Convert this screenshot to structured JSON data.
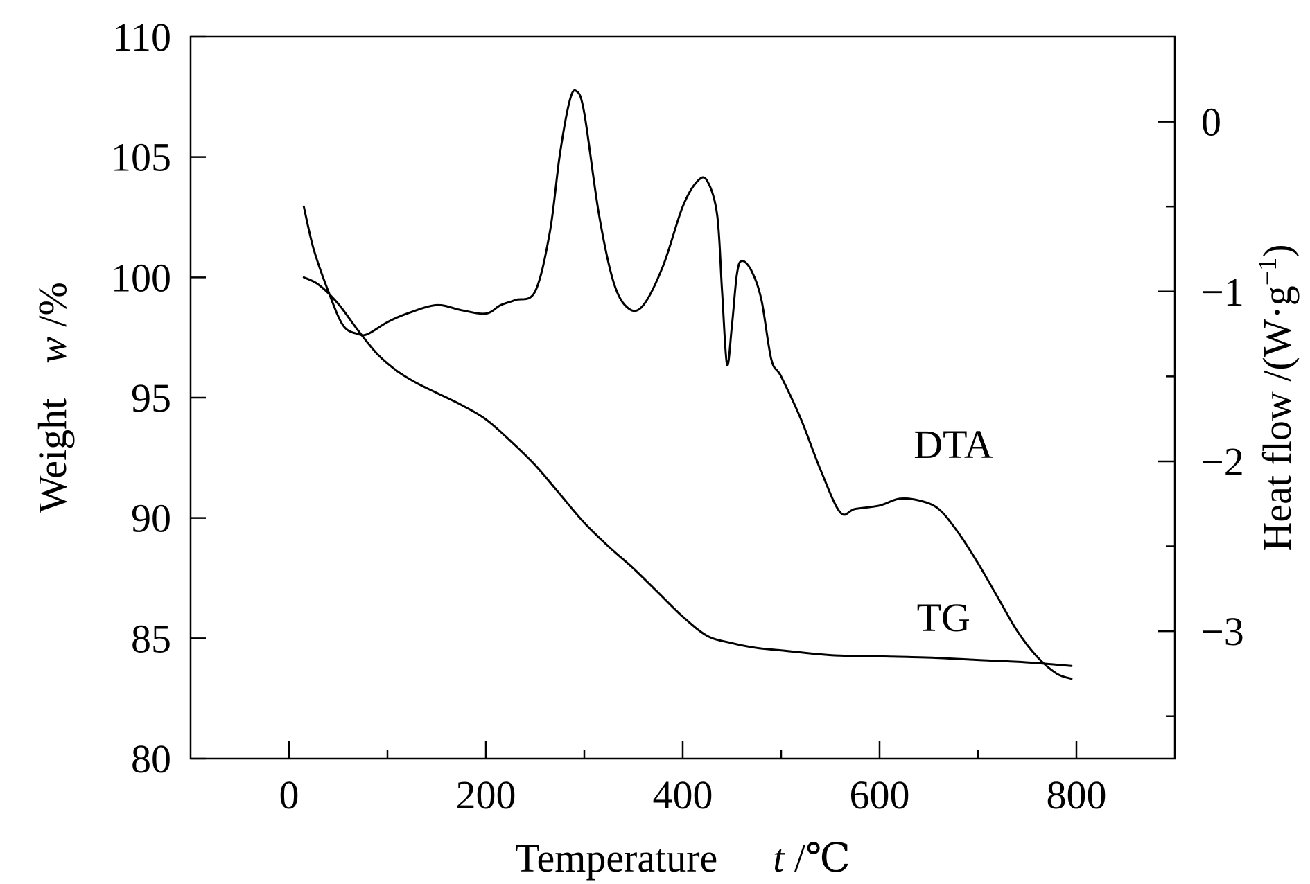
{
  "chart_data": {
    "type": "line",
    "x_axis": {
      "label_prefix": "Temperature",
      "label_var": "t",
      "label_unit": " /℃",
      "range": [
        -100,
        900
      ],
      "ticks": [
        0,
        200,
        400,
        600,
        800
      ],
      "tick_labels": [
        "0",
        "200",
        "400",
        "600",
        "800"
      ]
    },
    "y_left": {
      "label_prefix": "Weight",
      "label_var": "w",
      "label_unit": " /%",
      "range": [
        80,
        110
      ],
      "ticks": [
        80,
        85,
        90,
        95,
        100,
        105,
        110
      ],
      "tick_labels": [
        "80",
        "85",
        "90",
        "95",
        "100",
        "105",
        "110"
      ]
    },
    "y_right": {
      "label_prefix": "Heat flow /(W·g",
      "label_sup": "−1",
      "label_suffix": ")",
      "range": [
        -3.75,
        0.5
      ],
      "major_ticks": [
        0,
        -1,
        -2,
        -3
      ],
      "tick_labels": [
        "0",
        "−1",
        "−2",
        "−3"
      ],
      "minor_ticks": [
        -0.5,
        -1.5,
        -2.5,
        -3.5
      ]
    },
    "series": [
      {
        "name": "TG",
        "axis": "left",
        "x": [
          15,
          30,
          50,
          70,
          90,
          110,
          130,
          150,
          175,
          200,
          225,
          250,
          275,
          300,
          325,
          350,
          375,
          400,
          425,
          450,
          475,
          500,
          550,
          600,
          650,
          700,
          750,
          795
        ],
        "y": [
          100.0,
          99.7,
          98.9,
          97.8,
          96.8,
          96.1,
          95.6,
          95.2,
          94.7,
          94.1,
          93.2,
          92.2,
          91.0,
          89.8,
          88.8,
          87.9,
          86.9,
          85.9,
          85.1,
          84.8,
          84.6,
          84.5,
          84.3,
          84.25,
          84.2,
          84.1,
          84.0,
          83.85
        ]
      },
      {
        "name": "DTA",
        "axis": "right",
        "x": [
          15,
          25,
          40,
          55,
          70,
          80,
          100,
          120,
          150,
          175,
          200,
          215,
          230,
          250,
          265,
          275,
          285,
          292,
          300,
          315,
          330,
          345,
          360,
          380,
          400,
          415,
          425,
          435,
          440,
          445,
          450,
          455,
          460,
          470,
          480,
          490,
          500,
          520,
          540,
          560,
          575,
          600,
          620,
          640,
          660,
          680,
          700,
          720,
          740,
          760,
          780,
          795
        ],
        "y": [
          -0.5,
          -0.75,
          -1.0,
          -1.2,
          -1.25,
          -1.25,
          -1.18,
          -1.13,
          -1.08,
          -1.11,
          -1.13,
          -1.08,
          -1.05,
          -1.0,
          -0.65,
          -0.2,
          0.12,
          0.18,
          0.05,
          -0.55,
          -0.95,
          -1.1,
          -1.08,
          -0.85,
          -0.5,
          -0.35,
          -0.35,
          -0.55,
          -1.0,
          -1.43,
          -1.2,
          -0.9,
          -0.82,
          -0.88,
          -1.05,
          -1.4,
          -1.5,
          -1.75,
          -2.05,
          -2.3,
          -2.28,
          -2.26,
          -2.22,
          -2.23,
          -2.28,
          -2.42,
          -2.6,
          -2.8,
          -3.0,
          -3.15,
          -3.25,
          -3.28
        ]
      }
    ]
  }
}
